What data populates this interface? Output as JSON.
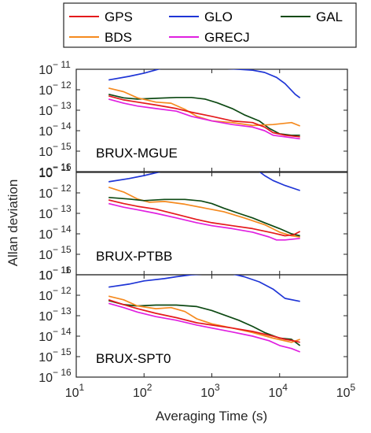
{
  "chart_data": {
    "type": "line",
    "xlabel": "Averaging Time (s)",
    "ylabel": "Allan deviation",
    "x_scale": "log",
    "y_scale": "log",
    "xlim": [
      10,
      100000
    ],
    "ylim": [
      1e-16,
      1e-11
    ],
    "x_ticks": [
      10,
      100,
      1000,
      10000,
      100000
    ],
    "y_ticks": [
      1e-16,
      1e-15,
      1e-14,
      1e-13,
      1e-12,
      1e-11
    ],
    "legend": {
      "placement": "top",
      "entries": [
        {
          "name": "GPS",
          "color": "#e41a1c"
        },
        {
          "name": "GLO",
          "color": "#1f35d6"
        },
        {
          "name": "GAL",
          "color": "#0e4a14"
        },
        {
          "name": "BDS",
          "color": "#f58a1f"
        },
        {
          "name": "GRECJ",
          "color": "#e020e0"
        }
      ]
    },
    "panels": [
      {
        "label": "BRUX-MGUE",
        "series": [
          {
            "name": "GLO",
            "x": [
              30,
              60,
              100,
              180,
              300,
              600,
              1000,
              1500,
              2500,
              4000,
              6000,
              9000,
              12000,
              17000,
              20000
            ],
            "y": [
              3e-12,
              4.5e-12,
              6.5e-12,
              1.1e-11,
              1.3e-11,
              1.4e-11,
              1.3e-11,
              1.1e-11,
              1e-11,
              9e-12,
              7e-12,
              4e-12,
              2e-12,
              6e-13,
              4e-13
            ]
          },
          {
            "name": "GAL",
            "x": [
              30,
              50,
              80,
              150,
              300,
              500,
              800,
              1200,
              2000,
              3000,
              5000,
              7000,
              10000,
              15000,
              20000
            ],
            "y": [
              6e-13,
              4e-13,
              3.5e-13,
              3.8e-13,
              4.2e-13,
              4.2e-13,
              3.5e-13,
              2.3e-13,
              1.2e-13,
              6e-14,
              3e-14,
              1.3e-14,
              7e-15,
              6e-15,
              6e-15
            ]
          },
          {
            "name": "BDS",
            "x": [
              30,
              50,
              80,
              150,
              250,
              400,
              600,
              1000,
              2000,
              4000,
              8000,
              15000,
              20000
            ],
            "y": [
              1.2e-12,
              8e-13,
              4e-13,
              2.5e-13,
              2.2e-13,
              1.1e-13,
              5e-14,
              3e-14,
              2.5e-14,
              1.8e-14,
              2e-14,
              2.5e-14,
              1.7e-14
            ]
          },
          {
            "name": "GPS",
            "x": [
              30,
              50,
              80,
              150,
              300,
              500,
              1000,
              2000,
              4000,
              6000,
              8000,
              12000,
              20000
            ],
            "y": [
              5e-13,
              3.2e-13,
              2.5e-13,
              1.8e-13,
              1.2e-13,
              8e-14,
              5e-14,
              3e-14,
              2.5e-14,
              1.5e-14,
              8e-15,
              6e-15,
              5e-15
            ]
          },
          {
            "name": "GRECJ",
            "x": [
              30,
              50,
              80,
              150,
              300,
              500,
              1000,
              2000,
              4000,
              6000,
              8000,
              12000,
              20000
            ],
            "y": [
              3.5e-13,
              2.2e-13,
              1.6e-13,
              1.2e-13,
              9e-14,
              5e-14,
              3e-14,
              2e-14,
              1.5e-14,
              1e-14,
              6e-15,
              5e-15,
              4e-15
            ]
          }
        ]
      },
      {
        "label": "BRUX-PTBB",
        "series": [
          {
            "name": "GLO",
            "x": [
              30,
              60,
              100,
              180,
              300,
              500,
              1000,
              2000,
              4000,
              5000,
              6000,
              8000,
              12000,
              20000
            ],
            "y": [
              3.5e-12,
              5e-12,
              7e-12,
              1.1e-11,
              1.4e-11,
              1.5e-11,
              1.5e-11,
              1.4e-11,
              1.2e-11,
              1.1e-11,
              7e-12,
              4e-12,
              2.3e-12,
              1.3e-12
            ]
          },
          {
            "name": "BDS",
            "x": [
              30,
              50,
              80,
              120,
              200,
              400,
              800,
              1500,
              3000,
              6000,
              10000,
              15000,
              20000
            ],
            "y": [
              1.9e-12,
              1.1e-12,
              5e-13,
              3.5e-13,
              3.8e-13,
              2.8e-13,
              1.8e-13,
              1.2e-13,
              6e-14,
              2.8e-14,
              1.2e-14,
              8e-15,
              7e-15
            ]
          },
          {
            "name": "GAL",
            "x": [
              30,
              60,
              100,
              200,
              400,
              700,
              1000,
              1500,
              2500,
              4000,
              6000,
              10000,
              15000,
              20000
            ],
            "y": [
              6e-13,
              5e-13,
              4.2e-13,
              4.8e-13,
              4.8e-13,
              4e-13,
              3e-13,
              1.8e-13,
              1e-13,
              6e-14,
              3.5e-14,
              1.8e-14,
              1e-14,
              8e-15
            ]
          },
          {
            "name": "GPS",
            "x": [
              30,
              50,
              80,
              150,
              300,
              600,
              1000,
              2000,
              4000,
              8000,
              12000,
              16000,
              20000
            ],
            "y": [
              4.5e-13,
              3e-13,
              2.2e-13,
              1.6e-13,
              9e-14,
              5e-14,
              3.5e-14,
              2.5e-14,
              1.8e-14,
              1.1e-14,
              8e-15,
              9e-15,
              1.3e-14
            ]
          },
          {
            "name": "GRECJ",
            "x": [
              30,
              50,
              80,
              150,
              300,
              600,
              1000,
              2000,
              4000,
              7000,
              9000,
              12000,
              20000
            ],
            "y": [
              3e-13,
              2e-13,
              1.5e-13,
              1e-13,
              6e-14,
              3.5e-14,
              2.5e-14,
              1.8e-14,
              1.2e-14,
              7e-15,
              5e-15,
              5e-15,
              6e-15
            ]
          }
        ]
      },
      {
        "label": "BRUX-SPT0",
        "series": [
          {
            "name": "GLO",
            "x": [
              30,
              60,
              100,
              200,
              300,
              500,
              800,
              1200,
              2000,
              3000,
              5000,
              8000,
              12000,
              20000
            ],
            "y": [
              2.5e-12,
              3.5e-12,
              5e-12,
              6.5e-12,
              8e-12,
              1e-11,
              1.1e-11,
              1.2e-11,
              1.1e-11,
              8e-12,
              4.5e-12,
              2e-12,
              7e-13,
              5e-13
            ]
          },
          {
            "name": "GAL",
            "x": [
              30,
              50,
              80,
              150,
              300,
              600,
              1000,
              1500,
              2500,
              4000,
              6000,
              10000,
              15000,
              20000
            ],
            "y": [
              5.5e-13,
              3.5e-13,
              3e-13,
              3.3e-13,
              3.3e-13,
              2.8e-13,
              1.8e-13,
              1.1e-13,
              6e-14,
              3e-14,
              1.5e-14,
              8e-15,
              7e-15,
              3.5e-15
            ]
          },
          {
            "name": "BDS",
            "x": [
              30,
              50,
              80,
              150,
              250,
              400,
              600,
              1000,
              2000,
              4000,
              8000,
              15000,
              20000
            ],
            "y": [
              9e-13,
              6e-13,
              3e-13,
              2.2e-13,
              2.5e-13,
              1.6e-13,
              7e-14,
              4e-14,
              2.5e-14,
              1.5e-14,
              8e-15,
              5e-15,
              7e-15
            ]
          },
          {
            "name": "GPS",
            "x": [
              30,
              50,
              80,
              150,
              300,
              600,
              1000,
              2000,
              4000,
              8000,
              12000,
              16000,
              20000
            ],
            "y": [
              6e-13,
              3.5e-13,
              2.2e-13,
              1.3e-13,
              8e-14,
              4.5e-14,
              3.5e-14,
              2.5e-14,
              1.7e-14,
              1e-14,
              7e-15,
              6e-15,
              5e-15
            ]
          },
          {
            "name": "GRECJ",
            "x": [
              30,
              50,
              80,
              150,
              300,
              600,
              1000,
              2000,
              4000,
              7000,
              10000,
              15000,
              20000
            ],
            "y": [
              4e-13,
              2.5e-13,
              1.5e-13,
              9e-14,
              6e-14,
              3.5e-14,
              2.5e-14,
              1.6e-14,
              1e-14,
              6e-15,
              3.5e-15,
              2.5e-15,
              1.7e-15
            ]
          }
        ]
      }
    ]
  }
}
